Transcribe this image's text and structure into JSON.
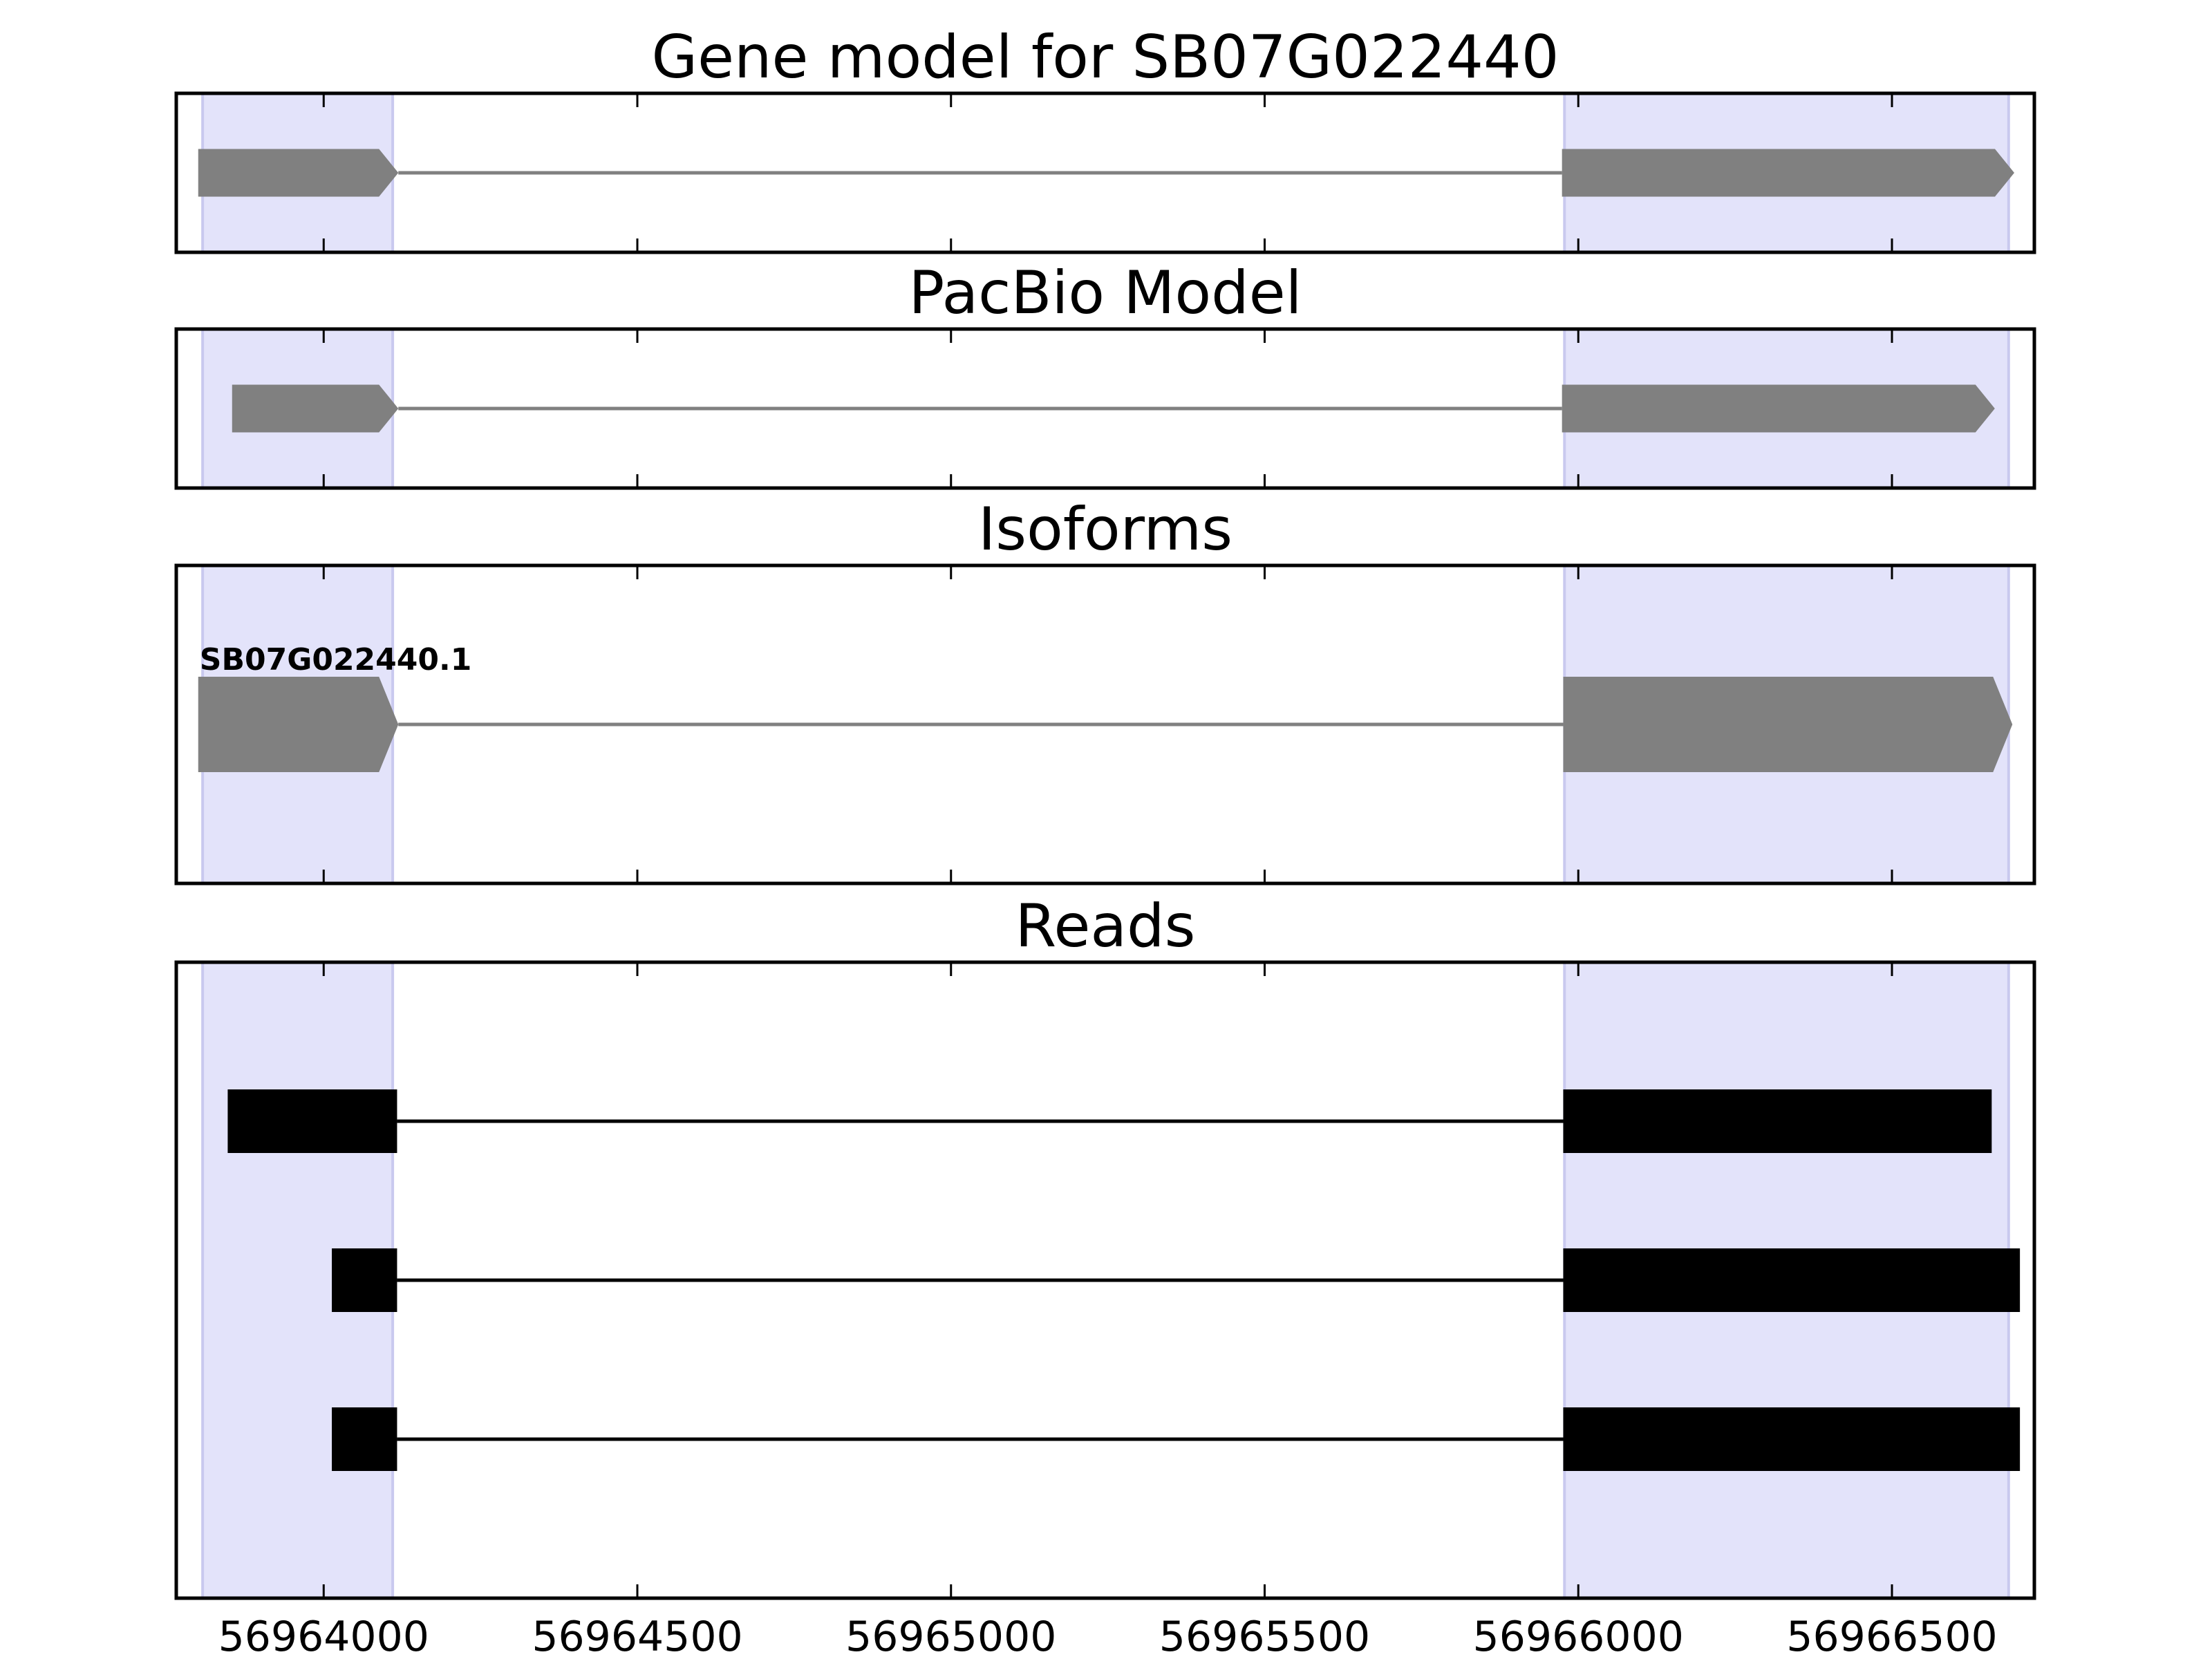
{
  "chart_data": [
    {
      "type": "transcript",
      "title": "Gene model for SB07G022440",
      "color": "#808080",
      "xlim": [
        56963765,
        56966727
      ],
      "xticks": [
        56964000,
        56964500,
        56965000,
        56965500,
        56966000,
        56966500
      ],
      "tick_labels": false,
      "highlights": [
        [
          56963807,
          56964110
        ],
        [
          56965978,
          56966686
        ]
      ],
      "highlight_color": "#e3e3fa",
      "features": [
        {
          "exons": [
            [
              56963800,
              56964119
            ],
            [
              56965974,
              56966695
            ]
          ]
        }
      ]
    },
    {
      "type": "transcript",
      "title": "PacBio Model",
      "color": "#808080",
      "xlim": [
        56963765,
        56966727
      ],
      "xticks": [
        56964000,
        56964500,
        56965000,
        56965500,
        56966000,
        56966500
      ],
      "tick_labels": false,
      "highlights": [
        [
          56963807,
          56964110
        ],
        [
          56965978,
          56966686
        ]
      ],
      "highlight_color": "#e3e3fa",
      "features": [
        {
          "exons": [
            [
              56963854,
              56964119
            ],
            [
              56965974,
              56966664
            ]
          ]
        }
      ]
    },
    {
      "type": "transcript",
      "title": "Isoforms",
      "color": "#808080",
      "xlim": [
        56963765,
        56966727
      ],
      "xticks": [
        56964000,
        56964500,
        56965000,
        56965500,
        56966000,
        56966500
      ],
      "tick_labels": false,
      "highlights": [
        [
          56963807,
          56964110
        ],
        [
          56965978,
          56966686
        ]
      ],
      "highlight_color": "#e3e3fa",
      "features": [
        {
          "name": "SB07G022440.1",
          "exons": [
            [
              56963800,
              56964119
            ],
            [
              56965976,
              56966692
            ]
          ]
        }
      ]
    },
    {
      "type": "read",
      "title": "Reads",
      "color": "#000000",
      "xlim": [
        56963765,
        56966727
      ],
      "xticks": [
        56964000,
        56964500,
        56965000,
        56965500,
        56966000,
        56966500
      ],
      "tick_labels": true,
      "highlights": [
        [
          56963807,
          56964110
        ],
        [
          56965978,
          56966686
        ]
      ],
      "highlight_color": "#e3e3fa",
      "features": [
        {
          "exons": [
            [
              56963847,
              56964117
            ],
            [
              56965976,
              56966659
            ]
          ]
        },
        {
          "exons": [
            [
              56964013,
              56964117
            ],
            [
              56965976,
              56966704
            ]
          ]
        },
        {
          "exons": [
            [
              56964013,
              56964117
            ],
            [
              56965976,
              56966704
            ]
          ]
        }
      ]
    }
  ]
}
